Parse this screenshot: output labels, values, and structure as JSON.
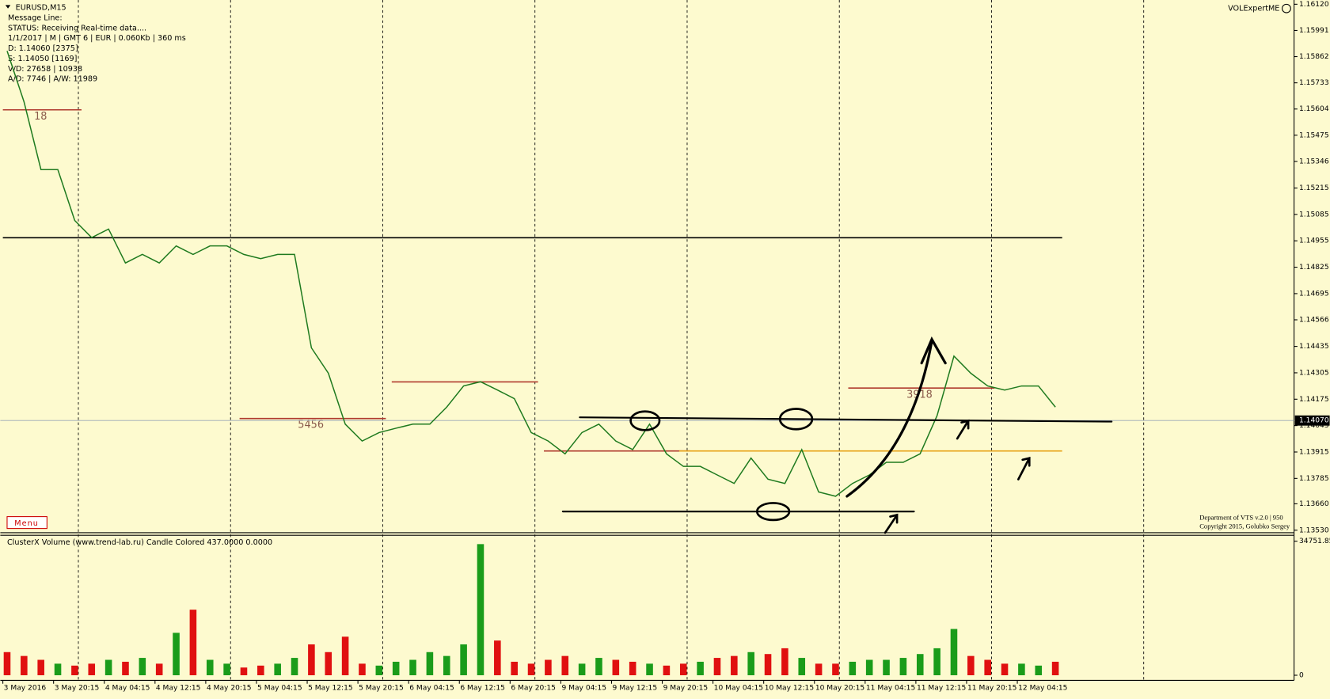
{
  "panel_text": {
    "symbol": "EURUSD,M15",
    "info_lines": [
      "Message Line:",
      "STATUS:  Receiving Real-time data....",
      "1/1/2017  |  M  |  GMT 6 | EUR | 0.060Kb | 360 ms",
      "D: 1.14060  [2375]",
      "S: 1.14050  [1169]",
      "V/D: 27658 | 10938",
      "A/D: 7746 | A/W: 11989"
    ],
    "indicator_name": "VOLExpertME",
    "menu": "Menu",
    "credits": [
      "Department of VTS  v.2.0 | 950",
      "Copyright 2015, Golubko Sergey"
    ],
    "volume_title": "ClusterX Volume (www.trend-lab.ru) Candle Colored 437.0000 0.0000"
  },
  "chart_data": [
    {
      "type": "line",
      "color": "#1f7a1f",
      "categories": [
        "3 May 2016",
        null,
        null,
        "3 May 20:15",
        null,
        null,
        "4 May 04:15",
        null,
        null,
        "4 May 12:15",
        null,
        null,
        "4 May 20:15",
        null,
        null,
        "5 May 04:15",
        null,
        null,
        "5 May 12:15",
        null,
        null,
        "5 May 20:15",
        null,
        null,
        "6 May 04:15",
        null,
        null,
        "6 May 12:15",
        null,
        null,
        "6 May 20:15",
        null,
        null,
        "9 May 04:15",
        null,
        null,
        "9 May 12:15",
        null,
        null,
        "9 May 20:15",
        null,
        null,
        "10 May 04:15",
        null,
        null,
        "10 May 12:15",
        null,
        null,
        "10 May 20:15",
        null,
        null,
        "11 May 04:15",
        null,
        null,
        "11 May 12:15",
        null,
        null,
        "11 May 20:15",
        null,
        null,
        "12 May 04:15",
        null,
        null
      ],
      "values": [
        1.1589,
        1.1564,
        1.15306,
        1.15306,
        1.15055,
        1.14971,
        1.15013,
        1.14846,
        1.14888,
        1.14846,
        1.1493,
        1.14888,
        1.1493,
        1.1493,
        1.14888,
        1.14867,
        1.14888,
        1.14888,
        1.14428,
        1.14303,
        1.14052,
        1.13969,
        1.14011,
        1.14032,
        1.14052,
        1.14052,
        1.14136,
        1.1424,
        1.14261,
        1.1422,
        1.14178,
        1.14011,
        1.13969,
        1.13906,
        1.14011,
        1.14052,
        1.13969,
        1.13927,
        1.14052,
        1.13906,
        1.13844,
        1.13844,
        1.13802,
        1.1376,
        1.13885,
        1.13781,
        1.1376,
        1.13927,
        1.13718,
        1.13697,
        1.1376,
        1.13802,
        1.13864,
        1.13864,
        1.13906,
        1.14094,
        1.14387,
        1.14303,
        1.1424,
        1.1422,
        1.1424,
        1.1424,
        1.14136
      ],
      "ylim": [
        1.1353,
        1.1612
      ],
      "yticks": [
        {
          "value": 1.1612,
          "label": "1.16120"
        },
        {
          "value": 1.15991,
          "label": "1.15991"
        },
        {
          "value": 1.15862,
          "label": "1.15862"
        },
        {
          "value": 1.15733,
          "label": "1.15733"
        },
        {
          "value": 1.15604,
          "label": "1.15604"
        },
        {
          "value": 1.15475,
          "label": "1.15475"
        },
        {
          "value": 1.15346,
          "label": "1.15346"
        },
        {
          "value": 1.15215,
          "label": "1.15215"
        },
        {
          "value": 1.15085,
          "label": "1.15085"
        },
        {
          "value": 1.14955,
          "label": "1.14955"
        },
        {
          "value": 1.14825,
          "label": "1.14825"
        },
        {
          "value": 1.14695,
          "label": "1.14695"
        },
        {
          "value": 1.14566,
          "label": "1.14566"
        },
        {
          "value": 1.14435,
          "label": "1.14435"
        },
        {
          "value": 1.14305,
          "label": "1.14305"
        },
        {
          "value": 1.14175,
          "label": "1.14175"
        },
        {
          "value": 1.14045,
          "label": "1.14045"
        },
        {
          "value": 1.13915,
          "label": "1.13915"
        },
        {
          "value": 1.13785,
          "label": "1.13785"
        },
        {
          "value": 1.1366,
          "label": "1.13660"
        },
        {
          "value": 1.1353,
          "label": "1.13530"
        }
      ],
      "current_price": {
        "value": 1.1407,
        "label": "1.14070"
      },
      "levels": [
        {
          "value": 1.156,
          "from": 0,
          "to": 4,
          "color": "#b03a2e",
          "volume": 18
        },
        {
          "value": 1.1497,
          "from": 0,
          "to": 62,
          "color": "#000000"
        },
        {
          "value": 1.1408,
          "from": 14,
          "to": 22,
          "color": "#b03a2e",
          "volume": 5456
        },
        {
          "value": 1.1426,
          "from": 23,
          "to": 31,
          "color": "#b03a2e"
        },
        {
          "value": 1.1392,
          "from": 32,
          "to": 40,
          "color": "#b03a2e"
        },
        {
          "value": 1.1392,
          "from": 40,
          "to": 62,
          "color": "#e8a317"
        },
        {
          "value": 1.1423,
          "from": 50,
          "to": 58,
          "color": "#b03a2e",
          "volume": 3918
        }
      ]
    },
    {
      "type": "bar",
      "up_color": "#1a9c1a",
      "down_color": "#e01010",
      "values": [
        6000,
        5000,
        4000,
        3000,
        2500,
        3000,
        4000,
        3500,
        4500,
        3000,
        11000,
        17000,
        4000,
        3000,
        2000,
        2500,
        3000,
        4500,
        8000,
        6000,
        10000,
        3000,
        2500,
        3500,
        4000,
        6000,
        5000,
        8000,
        34000,
        9000,
        3500,
        3000,
        4000,
        5000,
        3000,
        4500,
        4000,
        3500,
        3000,
        2500,
        3000,
        3500,
        4500,
        5000,
        6000,
        5500,
        7000,
        4500,
        3000,
        3000,
        3500,
        4000,
        4000,
        4500,
        5500,
        7000,
        12000,
        5000,
        4000,
        3000,
        3000,
        2500,
        3500
      ],
      "ylim": [
        0,
        34751.85
      ],
      "yticks": [
        0,
        34751.85
      ]
    }
  ]
}
